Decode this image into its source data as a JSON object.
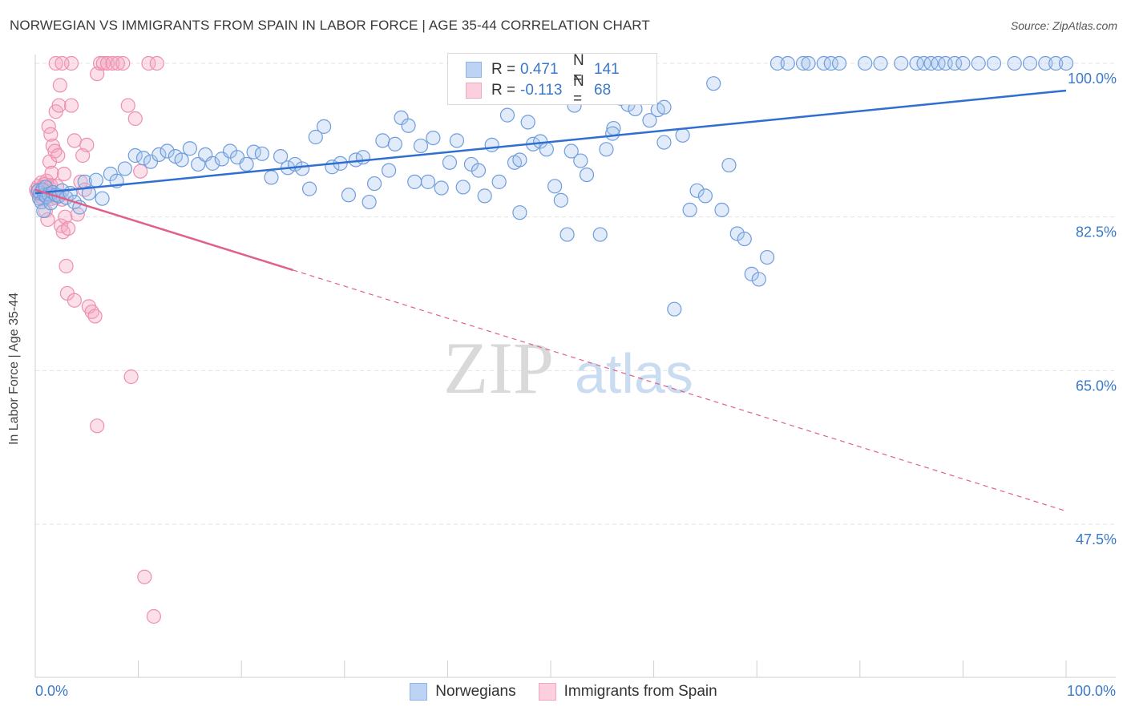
{
  "title": "NORWEGIAN VS IMMIGRANTS FROM SPAIN IN LABOR FORCE | AGE 35-44 CORRELATION CHART",
  "source": "Source: ZipAtlas.com",
  "watermark": {
    "zip": "ZIP",
    "atlas": "atlas"
  },
  "legend_top": {
    "rows": [
      {
        "r_label": "R =",
        "r_value": "0.471",
        "n_label": "N =",
        "n_value": "141",
        "color": "#8fb4e8"
      },
      {
        "r_label": "R =",
        "r_value": "-0.113",
        "n_label": "N =",
        "n_value": "68",
        "color": "#f4a7c0"
      }
    ]
  },
  "chart_data": {
    "type": "scatter",
    "title": "NORWEGIAN VS IMMIGRANTS FROM SPAIN IN LABOR FORCE | AGE 35-44 CORRELATION CHART",
    "xlabel": "",
    "ylabel": "In Labor Force | Age 35-44",
    "xlim": [
      0,
      100
    ],
    "ylim": [
      32,
      101.5
    ],
    "x_tick_labels": [
      "0.0%",
      "100.0%"
    ],
    "y_ticks": [
      100.0,
      82.5,
      65.0,
      47.5
    ],
    "y_tick_labels": [
      "100.0%",
      "82.5%",
      "65.0%",
      "47.5%"
    ],
    "grid": true,
    "legend_position": "bottom-center",
    "series": [
      {
        "name": "Norwegians",
        "color": "#8fb4e8",
        "line_color": "#2e6fd1",
        "trend": {
          "x": [
            0,
            100
          ],
          "y": [
            85.2,
            96.9
          ],
          "dashed_from": null
        },
        "points": [
          [
            0.3,
            85.5
          ],
          [
            0.4,
            84.6
          ],
          [
            0.5,
            85.2
          ],
          [
            0.6,
            84.2
          ],
          [
            0.7,
            85.6
          ],
          [
            0.8,
            83.2
          ],
          [
            0.9,
            85.0
          ],
          [
            1.0,
            85.9
          ],
          [
            1.1,
            84.8
          ],
          [
            1.3,
            85.1
          ],
          [
            1.5,
            84.1
          ],
          [
            1.7,
            85.3
          ],
          [
            2.0,
            85.0
          ],
          [
            2.3,
            84.9
          ],
          [
            2.6,
            85.5
          ],
          [
            3.0,
            84.7
          ],
          [
            3.4,
            85.2
          ],
          [
            3.8,
            84.2
          ],
          [
            4.3,
            83.6
          ],
          [
            4.8,
            86.5
          ],
          [
            5.2,
            85.2
          ],
          [
            5.9,
            86.7
          ],
          [
            6.5,
            84.6
          ],
          [
            7.3,
            87.4
          ],
          [
            7.9,
            86.6
          ],
          [
            8.7,
            88.0
          ],
          [
            9.7,
            89.5
          ],
          [
            10.5,
            89.2
          ],
          [
            11.2,
            88.8
          ],
          [
            12.0,
            89.6
          ],
          [
            12.8,
            90.0
          ],
          [
            13.6,
            89.4
          ],
          [
            14.2,
            89.0
          ],
          [
            15.0,
            90.3
          ],
          [
            15.8,
            88.5
          ],
          [
            16.5,
            89.6
          ],
          [
            17.2,
            88.6
          ],
          [
            18.1,
            89.1
          ],
          [
            18.9,
            90.0
          ],
          [
            19.6,
            89.3
          ],
          [
            20.5,
            88.5
          ],
          [
            21.2,
            89.9
          ],
          [
            22.0,
            89.7
          ],
          [
            22.9,
            87.0
          ],
          [
            23.8,
            89.4
          ],
          [
            24.5,
            88.1
          ],
          [
            25.2,
            88.5
          ],
          [
            25.9,
            88.0
          ],
          [
            26.6,
            85.7
          ],
          [
            27.2,
            91.6
          ],
          [
            28.0,
            92.8
          ],
          [
            28.8,
            88.2
          ],
          [
            29.6,
            88.6
          ],
          [
            30.4,
            85.0
          ],
          [
            31.1,
            89.0
          ],
          [
            31.8,
            89.3
          ],
          [
            32.4,
            84.2
          ],
          [
            32.9,
            86.3
          ],
          [
            33.7,
            91.2
          ],
          [
            34.3,
            87.8
          ],
          [
            34.9,
            90.8
          ],
          [
            35.5,
            93.8
          ],
          [
            36.2,
            92.9
          ],
          [
            36.8,
            86.5
          ],
          [
            37.4,
            90.6
          ],
          [
            38.1,
            86.5
          ],
          [
            38.6,
            91.5
          ],
          [
            39.4,
            85.8
          ],
          [
            40.2,
            88.7
          ],
          [
            40.9,
            91.2
          ],
          [
            41.5,
            85.9
          ],
          [
            42.3,
            88.5
          ],
          [
            43.0,
            87.8
          ],
          [
            43.6,
            84.9
          ],
          [
            44.3,
            90.7
          ],
          [
            45.0,
            86.5
          ],
          [
            45.8,
            94.1
          ],
          [
            46.5,
            88.7
          ],
          [
            47.0,
            89.0
          ],
          [
            47.8,
            93.3
          ],
          [
            48.3,
            90.8
          ],
          [
            49.0,
            91.1
          ],
          [
            49.6,
            90.2
          ],
          [
            50.4,
            86.0
          ],
          [
            51.0,
            84.4
          ],
          [
            51.6,
            80.5
          ],
          [
            52.3,
            95.2
          ],
          [
            52.9,
            88.9
          ],
          [
            53.5,
            87.3
          ],
          [
            54.2,
            96.5
          ],
          [
            54.8,
            80.5
          ],
          [
            55.4,
            90.2
          ],
          [
            56.1,
            92.6
          ],
          [
            56.8,
            96.0
          ],
          [
            57.5,
            95.3
          ],
          [
            58.2,
            94.8
          ],
          [
            58.9,
            97.3
          ],
          [
            59.6,
            93.5
          ],
          [
            60.4,
            94.7
          ],
          [
            61.0,
            95.0
          ],
          [
            62.0,
            72.0
          ],
          [
            62.8,
            91.8
          ],
          [
            63.5,
            83.3
          ],
          [
            64.2,
            85.5
          ],
          [
            65.0,
            84.9
          ],
          [
            65.8,
            97.7
          ],
          [
            66.6,
            83.3
          ],
          [
            67.3,
            88.4
          ],
          [
            68.1,
            80.6
          ],
          [
            68.8,
            80.0
          ],
          [
            69.5,
            76.0
          ],
          [
            70.2,
            75.4
          ],
          [
            71.0,
            77.9
          ],
          [
            72.0,
            100.0
          ],
          [
            73.0,
            100.0
          ],
          [
            74.5,
            100.0
          ],
          [
            75.0,
            100.0
          ],
          [
            76.5,
            100.0
          ],
          [
            77.2,
            100.0
          ],
          [
            78.0,
            100.0
          ],
          [
            80.5,
            100.0
          ],
          [
            82.0,
            100.0
          ],
          [
            84.0,
            100.0
          ],
          [
            85.5,
            100.0
          ],
          [
            86.2,
            100.0
          ],
          [
            86.9,
            100.0
          ],
          [
            87.6,
            100.0
          ],
          [
            88.3,
            100.0
          ],
          [
            89.2,
            100.0
          ],
          [
            90.0,
            100.0
          ],
          [
            91.5,
            100.0
          ],
          [
            93.0,
            100.0
          ],
          [
            95.0,
            100.0
          ],
          [
            96.5,
            100.0
          ],
          [
            98.0,
            100.0
          ],
          [
            99.0,
            100.0
          ],
          [
            100.0,
            100.0
          ],
          [
            61.0,
            91.0
          ],
          [
            56.0,
            92.0
          ],
          [
            52.0,
            90.0
          ],
          [
            47.0,
            83.0
          ]
        ]
      },
      {
        "name": "Immigrants from Spain",
        "color": "#f4a7c0",
        "line_color": "#e0608a",
        "trend": {
          "x": [
            0,
            100
          ],
          "y": [
            85.6,
            49.0
          ],
          "solid_to": 25
        },
        "points": [
          [
            0.1,
            85.6
          ],
          [
            0.2,
            85.3
          ],
          [
            0.3,
            86.0
          ],
          [
            0.4,
            85.1
          ],
          [
            0.5,
            84.8
          ],
          [
            0.6,
            86.4
          ],
          [
            0.7,
            85.9
          ],
          [
            0.8,
            84.5
          ],
          [
            0.9,
            86.2
          ],
          [
            1.0,
            85.0
          ],
          [
            1.1,
            86.6
          ],
          [
            1.2,
            85.4
          ],
          [
            1.3,
            84.9
          ],
          [
            1.4,
            85.8
          ],
          [
            1.5,
            86.1
          ],
          [
            1.6,
            84.6
          ],
          [
            1.0,
            83.2
          ],
          [
            1.2,
            82.2
          ],
          [
            1.4,
            88.8
          ],
          [
            1.6,
            87.5
          ],
          [
            1.3,
            92.8
          ],
          [
            1.5,
            91.9
          ],
          [
            1.7,
            90.6
          ],
          [
            1.9,
            90.0
          ],
          [
            2.0,
            94.5
          ],
          [
            2.1,
            86.0
          ],
          [
            2.2,
            89.5
          ],
          [
            2.0,
            84.7
          ],
          [
            2.3,
            95.2
          ],
          [
            2.4,
            97.5
          ],
          [
            2.5,
            81.5
          ],
          [
            2.6,
            84.5
          ],
          [
            2.7,
            80.8
          ],
          [
            2.8,
            87.4
          ],
          [
            2.9,
            82.5
          ],
          [
            3.0,
            76.9
          ],
          [
            3.1,
            73.8
          ],
          [
            3.2,
            81.2
          ],
          [
            3.5,
            95.2
          ],
          [
            3.8,
            91.2
          ],
          [
            4.1,
            82.8
          ],
          [
            4.4,
            86.5
          ],
          [
            4.6,
            89.5
          ],
          [
            4.8,
            85.6
          ],
          [
            5.0,
            90.7
          ],
          [
            5.2,
            72.3
          ],
          [
            5.5,
            71.7
          ],
          [
            5.8,
            71.2
          ],
          [
            6.0,
            98.8
          ],
          [
            6.3,
            100.0
          ],
          [
            6.6,
            100.0
          ],
          [
            7.0,
            100.0
          ],
          [
            7.5,
            100.0
          ],
          [
            8.0,
            100.0
          ],
          [
            8.5,
            100.0
          ],
          [
            9.0,
            95.2
          ],
          [
            9.3,
            64.3
          ],
          [
            9.7,
            93.7
          ],
          [
            10.2,
            87.7
          ],
          [
            10.6,
            41.5
          ],
          [
            11.0,
            100.0
          ],
          [
            11.5,
            37.0
          ],
          [
            11.8,
            100.0
          ],
          [
            2.0,
            100.0
          ],
          [
            3.5,
            100.0
          ],
          [
            6.0,
            58.7
          ],
          [
            2.6,
            100.0
          ],
          [
            3.8,
            73.0
          ]
        ]
      }
    ]
  }
}
